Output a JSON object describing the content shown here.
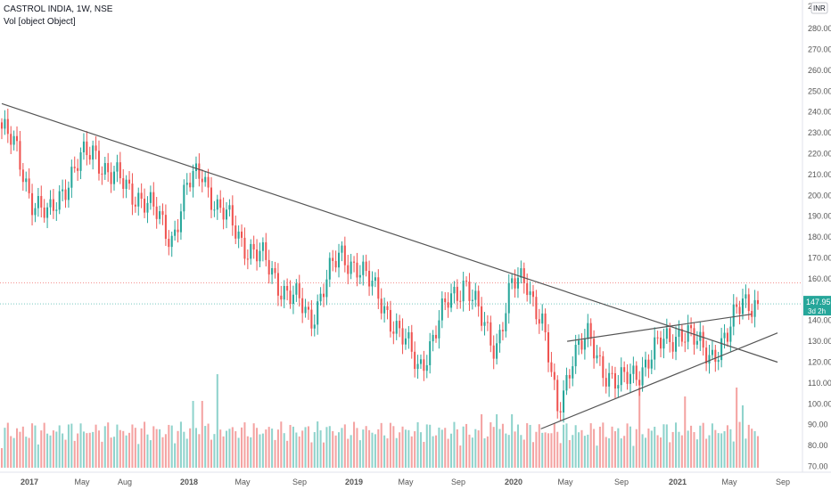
{
  "legend": {
    "symbol_line": "CASTROL INDIA, 1W, NSE",
    "volume_line": "Vol [object Object]"
  },
  "price_label": {
    "price": "147.95",
    "countdown": "3d 2h"
  },
  "currency": "INR",
  "colors": {
    "up": "#26a69a",
    "down": "#ef5350",
    "vol_up": "#8fd3cc",
    "vol_down": "#f4a3a2",
    "trendline": "#555555",
    "price_line": "#26a69a",
    "resistance_line": "#ef5350"
  },
  "chart_data": {
    "type": "candlestick",
    "title": "CASTROL INDIA, 1W, NSE",
    "ylim": [
      70,
      290
    ],
    "y_ticks": [
      70,
      80,
      90,
      100,
      110,
      120,
      130,
      140,
      150,
      160,
      170,
      180,
      190,
      200,
      210,
      220,
      230,
      240,
      250,
      260,
      270,
      280
    ],
    "y_top_partial_label": "2",
    "x_ticks": [
      "2017",
      "May",
      "Aug",
      "2018",
      "May",
      "Sep",
      "2019",
      "May",
      "Sep",
      "2020",
      "May",
      "Sep",
      "2021",
      "May",
      "Sep"
    ],
    "last_price": 147.95,
    "resistance_level": 158,
    "grid": false,
    "series": [
      {
        "name": "Price",
        "kind": "candles",
        "key_closes": [
          232,
          220,
          198,
          188,
          205,
          215,
          222,
          210,
          204,
          200,
          190,
          180,
          203,
          212,
          193,
          185,
          175,
          168,
          158,
          150,
          140,
          160,
          170,
          168,
          155,
          145,
          130,
          118,
          132,
          150,
          160,
          140,
          128,
          155,
          160,
          140,
          95,
          125,
          130,
          118,
          108,
          115,
          122,
          130,
          136,
          128,
          125,
          130,
          152,
          147.95
        ]
      },
      {
        "name": "Vol",
        "kind": "volume"
      }
    ],
    "trendlines": [
      {
        "from": [
          "2016-10",
          244
        ],
        "to": [
          "2021-09",
          120
        ]
      },
      {
        "from": [
          "2020-03",
          88
        ],
        "to": [
          "2021-09",
          134
        ]
      },
      {
        "from": [
          "2020-05",
          130
        ],
        "to": [
          "2021-07",
          143
        ]
      }
    ]
  }
}
